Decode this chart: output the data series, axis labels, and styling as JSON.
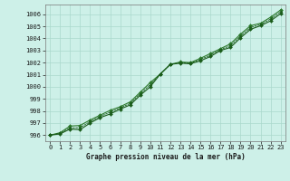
{
  "xlabel": "Graphe pression niveau de la mer (hPa)",
  "background_color": "#cdf0e8",
  "grid_color": "#aad8cc",
  "line_color_dark": "#1a5c1a",
  "line_color_mid": "#2d7a2d",
  "xlim": [
    -0.5,
    23.5
  ],
  "ylim": [
    995.5,
    1006.8
  ],
  "yticks": [
    996,
    997,
    998,
    999,
    1000,
    1001,
    1002,
    1003,
    1004,
    1005,
    1006
  ],
  "xticks": [
    0,
    1,
    2,
    3,
    4,
    5,
    6,
    7,
    8,
    9,
    10,
    11,
    12,
    13,
    14,
    15,
    16,
    17,
    18,
    19,
    20,
    21,
    22,
    23
  ],
  "series1": [
    996.0,
    996.1,
    996.5,
    996.45,
    997.0,
    997.45,
    997.75,
    998.15,
    998.5,
    999.3,
    1000.0,
    1001.05,
    1001.85,
    1001.95,
    1001.9,
    1002.15,
    1002.5,
    1003.0,
    1003.25,
    1004.05,
    1004.75,
    1005.05,
    1005.45,
    1006.05
  ],
  "series2": [
    996.0,
    996.2,
    996.75,
    996.8,
    997.25,
    997.65,
    998.05,
    998.35,
    998.75,
    999.55,
    1000.35,
    1001.05,
    1001.85,
    1002.05,
    1002.0,
    1002.35,
    1002.75,
    1003.15,
    1003.55,
    1004.35,
    1005.05,
    1005.25,
    1005.75,
    1006.35
  ],
  "series3": [
    996.0,
    996.15,
    996.6,
    996.62,
    997.12,
    997.55,
    997.9,
    998.25,
    998.62,
    999.42,
    1000.17,
    1001.05,
    1001.85,
    1002.0,
    1001.95,
    1002.25,
    1002.62,
    1003.07,
    1003.4,
    1004.2,
    1004.9,
    1005.15,
    1005.6,
    1006.2
  ],
  "marker": "D",
  "marker_size": 2.0,
  "line_width": 0.8,
  "tick_fontsize": 5.0,
  "xlabel_fontsize": 5.5
}
